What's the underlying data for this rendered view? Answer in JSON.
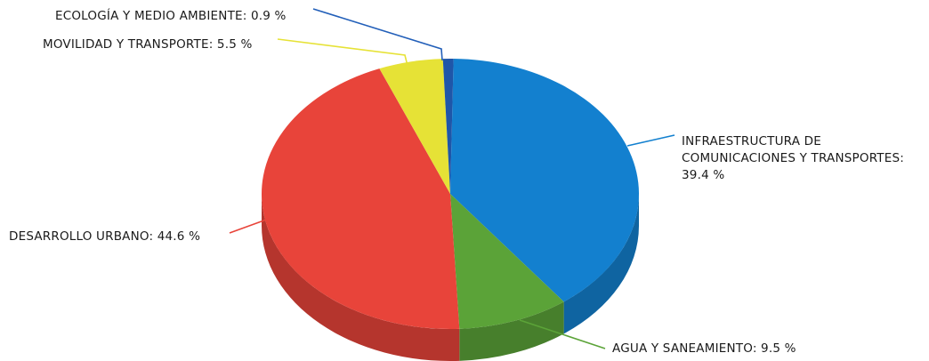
{
  "chart_data": {
    "type": "pie",
    "style": "3d",
    "title": "",
    "slices": [
      {
        "label": "INFRAESTRUCTURA DE COMUNICACIONES Y TRANSPORTES",
        "value": 39.4,
        "display": "INFRAESTRUCTURA DE COMUNICACIONES Y TRANSPORTES: 39.4 %",
        "color": "#1380cf"
      },
      {
        "label": "AGUA Y SANEAMIENTO",
        "value": 9.5,
        "display": "AGUA Y SANEAMIENTO: 9.5 %",
        "color": "#5ba338"
      },
      {
        "label": "DESARROLLO URBANO",
        "value": 44.6,
        "display": "DESARROLLO URBANO: 44.6 %",
        "color": "#e8443a"
      },
      {
        "label": "MOVILIDAD Y TRANSPORTE",
        "value": 5.5,
        "display": "MOVILIDAD Y TRANSPORTE: 5.5 %",
        "color": "#e6e236"
      },
      {
        "label": "ECOLOGÍA Y MEDIO AMBIENTE",
        "value": 0.9,
        "display": "ECOLOGÍA Y MEDIO AMBIENTE: 0.9 %",
        "color": "#1f56a8"
      }
    ],
    "label_lines": {
      "infra": [
        "INFRAESTRUCTURA DE",
        "COMUNICACIONES Y TRANSPORTES:",
        "39.4 %"
      ]
    }
  }
}
